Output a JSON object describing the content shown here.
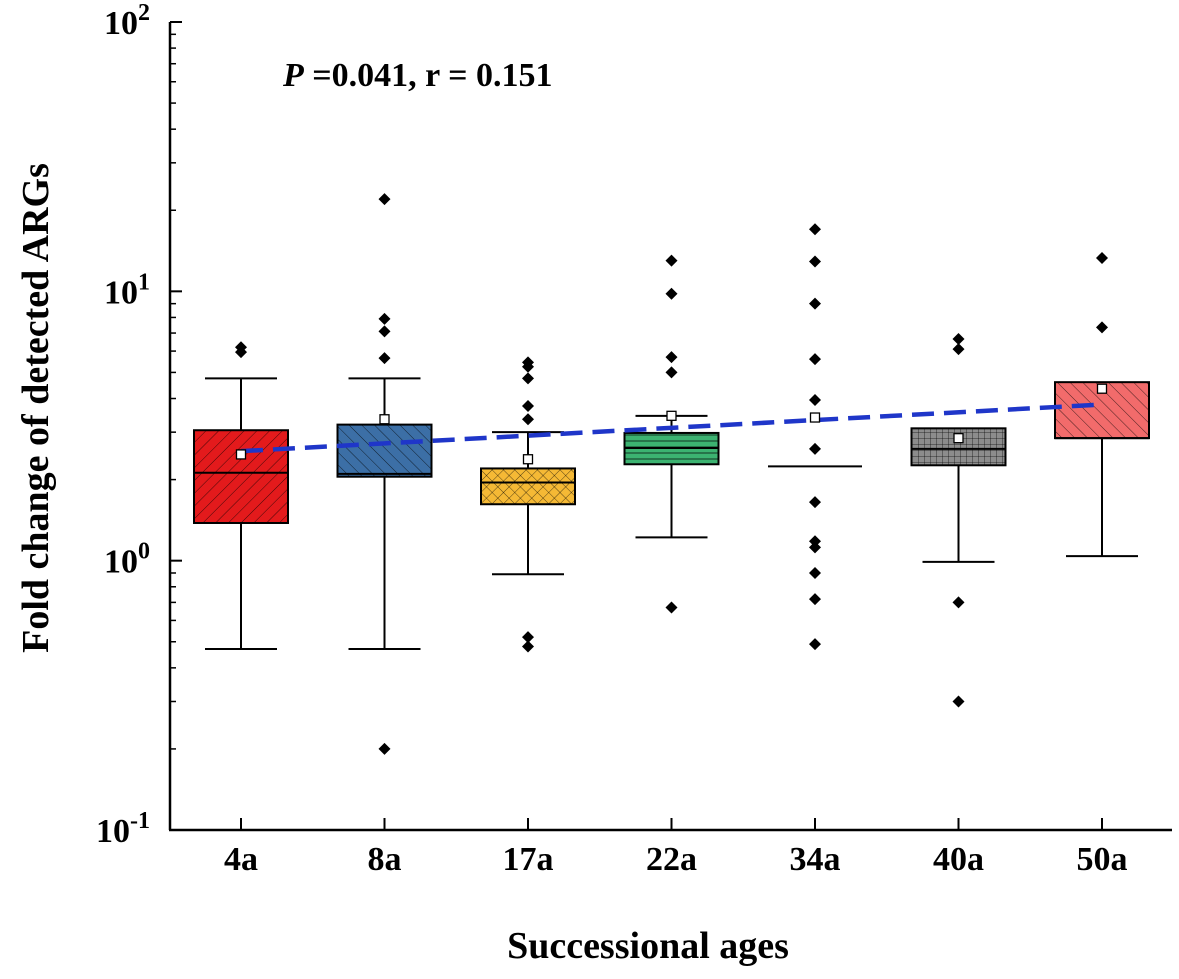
{
  "chart_data": {
    "type": "box",
    "title": "",
    "annotation": {
      "p_label": "P",
      "p_value": " =0.041, r = 0.151"
    },
    "xlabel": "Successional ages",
    "ylabel": "Fold change of detected ARGs",
    "yscale": "log10",
    "ylim": [
      0.1,
      100
    ],
    "yticks": [
      {
        "value": 0.1,
        "base": "10",
        "exp": "-1"
      },
      {
        "value": 1,
        "base": "10",
        "exp": "0"
      },
      {
        "value": 10,
        "base": "10",
        "exp": "1"
      },
      {
        "value": 100,
        "base": "10",
        "exp": "2"
      }
    ],
    "categories": [
      "4a",
      "8a",
      "17a",
      "22a",
      "34a",
      "40a",
      "50a"
    ],
    "boxes": [
      {
        "category": "4a",
        "color": "#e31a1c",
        "pattern": "diag-down",
        "whisker_low": 0.47,
        "q1": 1.38,
        "median": 2.12,
        "q3": 3.05,
        "whisker_high": 4.75,
        "mean": 2.48,
        "outliers": [
          5.95,
          6.2
        ]
      },
      {
        "category": "8a",
        "color": "#3c6fa6",
        "pattern": "diag-up",
        "whisker_low": 0.47,
        "q1": 2.05,
        "median": 2.1,
        "q3": 3.2,
        "whisker_high": 4.75,
        "mean": 3.35,
        "outliers": [
          0.2,
          5.65,
          7.1,
          7.9,
          22.0
        ]
      },
      {
        "category": "17a",
        "color": "#f5b935",
        "pattern": "crosshatch",
        "whisker_low": 0.89,
        "q1": 1.62,
        "median": 1.95,
        "q3": 2.2,
        "whisker_high": 3.0,
        "mean": 2.38,
        "outliers": [
          0.48,
          0.52,
          3.35,
          3.75,
          4.75,
          5.25,
          5.45
        ]
      },
      {
        "category": "22a",
        "color": "#3cb371",
        "pattern": "horizontal",
        "whisker_low": 1.22,
        "q1": 2.28,
        "median": 2.62,
        "q3": 2.98,
        "whisker_high": 3.45,
        "mean": 3.45,
        "outliers": [
          0.67,
          5.0,
          5.7,
          9.8,
          13.0
        ]
      },
      {
        "category": "34a",
        "color": "#ffffff",
        "pattern": "none",
        "whisker_low": 2.24,
        "q1": 2.24,
        "median": 2.24,
        "q3": 2.24,
        "whisker_high": 2.24,
        "mean": 3.4,
        "outliers": [
          0.49,
          0.72,
          0.9,
          1.12,
          1.18,
          1.65,
          2.6,
          3.95,
          5.6,
          9.0,
          12.9,
          17.0
        ]
      },
      {
        "category": "40a",
        "color": "#8c8c8c",
        "pattern": "grid",
        "whisker_low": 0.99,
        "q1": 2.26,
        "median": 2.6,
        "q3": 3.1,
        "whisker_high": 3.1,
        "mean": 2.85,
        "outliers": [
          0.3,
          0.7,
          6.1,
          6.65
        ]
      },
      {
        "category": "50a",
        "color": "#f26b6b",
        "pattern": "diag-up",
        "whisker_low": 1.04,
        "q1": 2.85,
        "median": 2.85,
        "q3": 4.6,
        "whisker_high": 4.6,
        "mean": 4.35,
        "outliers": [
          7.35,
          13.3
        ]
      }
    ],
    "trend_line": {
      "color": "#1f36c9",
      "style": "dashed",
      "y_start": 2.55,
      "y_end": 3.8
    }
  }
}
